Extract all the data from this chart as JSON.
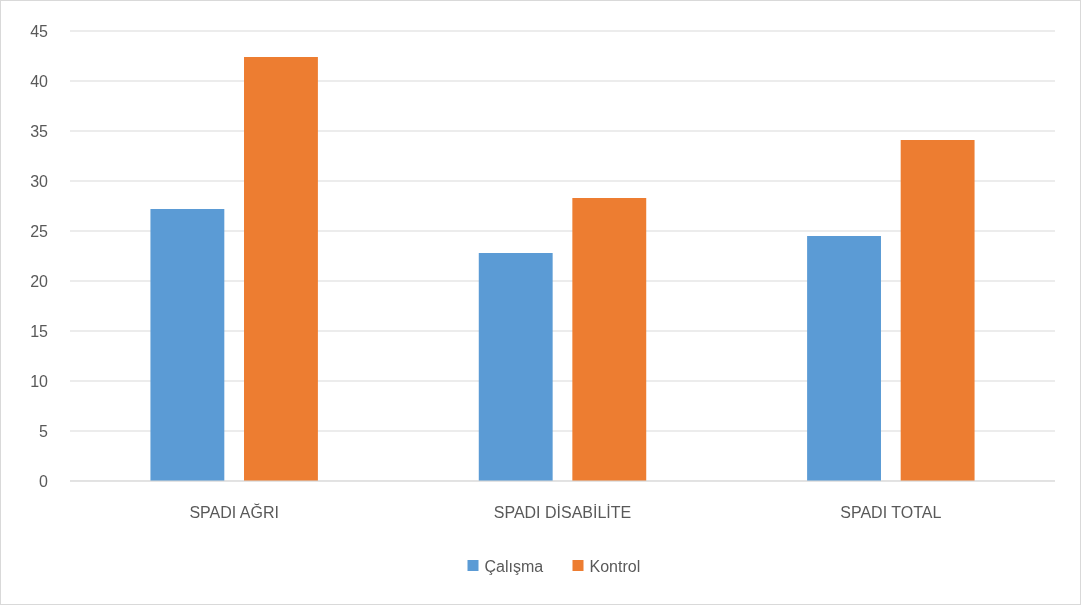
{
  "chart_data": {
    "type": "bar",
    "categories": [
      "SPADI AĞRI",
      "SPADI DİSABİLİTE",
      "SPADI TOTAL"
    ],
    "series": [
      {
        "name": "Çalışma",
        "color": "#5b9bd5",
        "values": [
          27.2,
          22.8,
          24.5
        ]
      },
      {
        "name": "Kontrol",
        "color": "#ed7d31",
        "values": [
          42.4,
          28.3,
          34.1
        ]
      }
    ],
    "ylim": [
      0,
      45
    ],
    "yticks": [
      0,
      5,
      10,
      15,
      20,
      25,
      30,
      35,
      40,
      45
    ],
    "grid": "y",
    "legend": "bottom"
  }
}
